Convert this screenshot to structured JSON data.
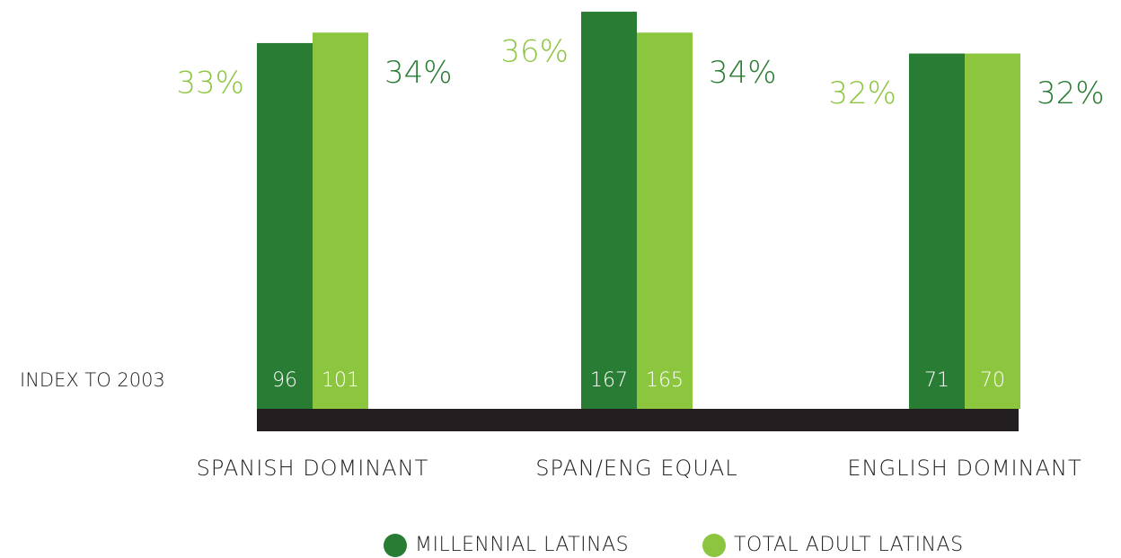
{
  "chart_data": {
    "type": "bar",
    "categories": [
      "SPANISH DOMINANT",
      "SPAN/ENG EQUAL",
      "ENGLISH DOMINANT"
    ],
    "index_label": "INDEX TO 2003",
    "ylim": [
      -2,
      37
    ],
    "series": [
      {
        "name": "MILLENNIAL LATINAS",
        "color": "#297c33",
        "label_color": "#8cc63f",
        "values": [
          33,
          36,
          32
        ],
        "value_labels": [
          "33%",
          "36%",
          "32%"
        ],
        "index": [
          96,
          167,
          71
        ]
      },
      {
        "name": "TOTAL ADULT LATINAS",
        "color": "#8cc63f",
        "label_color": "#297c33",
        "values": [
          34,
          34,
          32
        ],
        "value_labels": [
          "34%",
          "34%",
          "32%"
        ],
        "index": [
          101,
          165,
          70
        ]
      }
    ]
  }
}
